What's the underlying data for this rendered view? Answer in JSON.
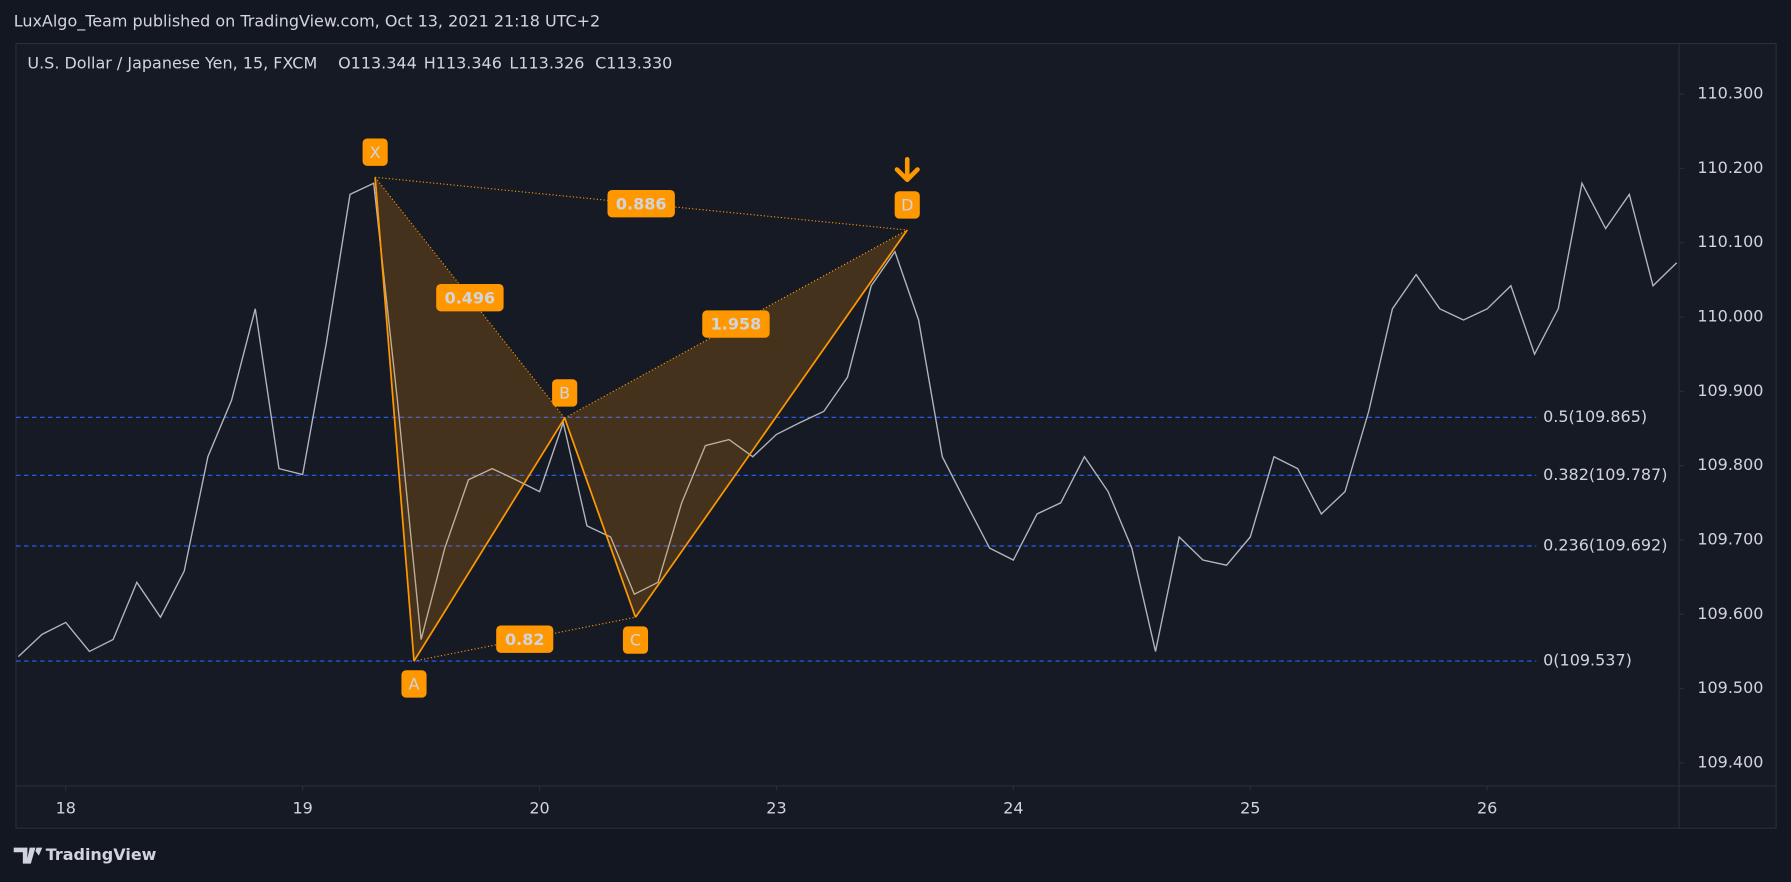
{
  "header": "LuxAlgo_Team published on TradingView.com, Oct 13, 2021 21:18 UTC+2",
  "footer": "TradingView",
  "chart_data": {
    "type": "line",
    "title": "U.S. Dollar / Japanese Yen, 15, FXCM",
    "ohlc": [
      "O113.344",
      "H113.346",
      "L113.326",
      "C113.330"
    ],
    "color": "#b2b5be",
    "x": [
      -0.2,
      -0.1,
      0,
      0.1,
      0.2,
      0.3,
      0.4,
      0.5,
      0.6,
      0.7,
      0.8,
      0.9,
      1,
      1.1,
      1.2,
      1.3,
      1.4,
      1.5,
      1.6,
      1.7,
      1.8,
      1.9,
      2,
      2.1,
      2.2,
      2.3,
      2.4,
      2.5,
      2.6,
      2.7,
      2.8,
      2.9,
      3,
      3.1,
      3.2,
      3.3,
      3.4,
      3.5,
      3.6,
      3.7,
      3.8,
      3.9,
      4,
      4.1,
      4.2,
      4.3,
      4.4,
      4.5,
      4.6,
      4.7,
      4.8,
      4.9,
      5,
      5.1,
      5.2,
      5.3,
      5.4,
      5.5,
      5.6,
      5.7,
      5.8,
      5.9,
      6,
      6.1,
      6.2,
      6.3,
      6.4,
      6.5,
      6.6,
      6.7,
      6.8
    ],
    "values": [
      109.543,
      109.573,
      109.589,
      109.55,
      109.566,
      109.643,
      109.596,
      109.658,
      109.812,
      109.888,
      110.011,
      109.796,
      109.788,
      109.965,
      110.165,
      110.18,
      109.888,
      109.566,
      109.689,
      109.781,
      109.796,
      109.781,
      109.765,
      109.858,
      109.719,
      109.704,
      109.627,
      109.643,
      109.75,
      109.827,
      109.835,
      109.812,
      109.842,
      109.858,
      109.873,
      109.919,
      110.042,
      110.088,
      109.996,
      109.812,
      109.75,
      109.689,
      109.673,
      109.735,
      109.75,
      109.812,
      109.765,
      109.689,
      109.55,
      109.704,
      109.673,
      109.666,
      109.704,
      109.812,
      109.796,
      109.735,
      109.765,
      109.873,
      110.011,
      110.057,
      110.011,
      109.996,
      110.011,
      110.042,
      109.95,
      110.011,
      110.18,
      110.119,
      110.165,
      110.042,
      110.073
    ],
    "xlim": [
      -0.21,
      6.81
    ],
    "ylim": [
      109.369,
      110.368
    ],
    "xticks": [
      {
        "value": 0,
        "label": "18"
      },
      {
        "value": 1,
        "label": "19"
      },
      {
        "value": 2,
        "label": "20"
      },
      {
        "value": 3,
        "label": "23"
      },
      {
        "value": 4,
        "label": "24"
      },
      {
        "value": 5,
        "label": "25"
      },
      {
        "value": 6,
        "label": "26"
      }
    ],
    "yticks": [
      {
        "value": 109.4,
        "label": "109.400"
      },
      {
        "value": 109.5,
        "label": "109.500"
      },
      {
        "value": 109.6,
        "label": "109.600"
      },
      {
        "value": 109.7,
        "label": "109.700"
      },
      {
        "value": 109.8,
        "label": "109.800"
      },
      {
        "value": 109.9,
        "label": "109.900"
      },
      {
        "value": 110,
        "label": "110.000"
      },
      {
        "value": 110.1,
        "label": "110.100"
      },
      {
        "value": 110.2,
        "label": "110.200"
      },
      {
        "value": 110.3,
        "label": "110.300"
      }
    ],
    "levels": [
      {
        "value": 109.865,
        "label": "0.5(109.865)"
      },
      {
        "value": 109.787,
        "label": "0.382(109.787)"
      },
      {
        "value": 109.692,
        "label": "0.236(109.692)"
      },
      {
        "value": 109.537,
        "label": "0(109.537)"
      }
    ],
    "pattern": {
      "color": "#ff9800",
      "points": [
        {
          "label": "X",
          "x": 1.306,
          "y": 110.188
        },
        {
          "label": "A",
          "x": 1.47,
          "y": 109.537
        },
        {
          "label": "B",
          "x": 2.106,
          "y": 109.864
        },
        {
          "label": "C",
          "x": 2.405,
          "y": 109.596
        },
        {
          "label": "D",
          "x": 3.552,
          "y": 110.117
        }
      ],
      "ratios": [
        0.496,
        1.958,
        0.82,
        0.886
      ]
    }
  }
}
